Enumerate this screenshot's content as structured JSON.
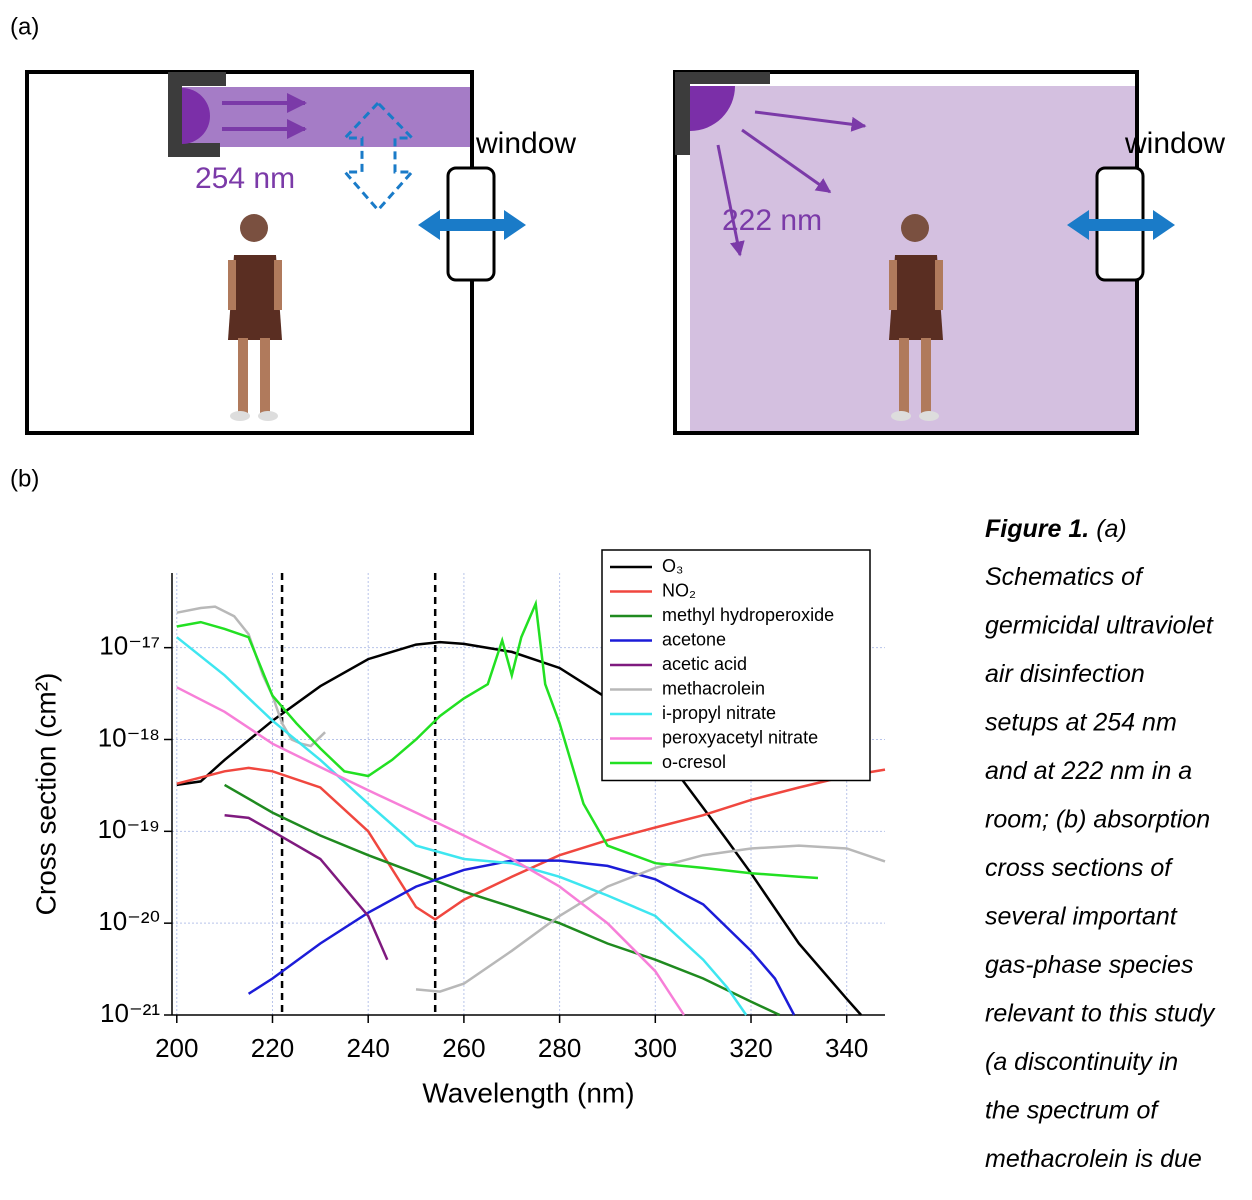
{
  "panel_a": {
    "label": "(a)",
    "left_wavelength": "254 nm",
    "left_window": "window",
    "right_wavelength": "222 nm",
    "right_window": "window"
  },
  "panel_b": {
    "label": "(b)"
  },
  "chart_data": {
    "type": "line",
    "x_label": "Wavelength (nm)",
    "y_label": "Cross section (cm²)",
    "log_y": true,
    "grid": true,
    "legend": "top-right",
    "xlim": [
      199,
      348
    ],
    "xticks": [
      200,
      220,
      240,
      260,
      280,
      300,
      320,
      340
    ],
    "ylim": [
      1e-21,
      6.5e-17
    ],
    "yticks": [
      {
        "value": 1e-21,
        "label": "10⁻²¹"
      },
      {
        "value": 1e-20,
        "label": "10⁻²⁰"
      },
      {
        "value": 1e-19,
        "label": "10⁻¹⁹"
      },
      {
        "value": 1e-18,
        "label": "10⁻¹⁸"
      },
      {
        "value": 1e-17,
        "label": "10⁻¹⁷"
      }
    ],
    "vlines": [
      222,
      254
    ],
    "series": [
      {
        "name": "O₃",
        "color": "#000000",
        "x": [
          200,
          205,
          210,
          220,
          230,
          240,
          250,
          255,
          260,
          270,
          280,
          290,
          300,
          310,
          315,
          320,
          330,
          340,
          343
        ],
        "values": [
          3.2e-19,
          3.5e-19,
          6e-19,
          1.6e-18,
          3.8e-18,
          7.5e-18,
          1.08e-17,
          1.15e-17,
          1.1e-17,
          9e-18,
          6e-18,
          2.8e-18,
          9e-19,
          1.8e-19,
          8e-20,
          3.5e-20,
          6e-21,
          1.5e-21,
          1e-21
        ]
      },
      {
        "name": "NO₂",
        "color": "#f0473f",
        "x": [
          200,
          210,
          215,
          220,
          230,
          240,
          250,
          254,
          260,
          270,
          280,
          290,
          300,
          310,
          320,
          330,
          340,
          348
        ],
        "values": [
          3.3e-19,
          4.5e-19,
          4.9e-19,
          4.5e-19,
          3e-19,
          1e-19,
          1.5e-20,
          1.1e-20,
          1.8e-20,
          3.2e-20,
          5.5e-20,
          8e-20,
          1.1e-19,
          1.5e-19,
          2.2e-19,
          3e-19,
          4e-19,
          4.7e-19
        ]
      },
      {
        "name": "methyl hydroperoxide",
        "color": "#1f8a1f",
        "x": [
          210,
          220,
          230,
          240,
          250,
          260,
          270,
          280,
          290,
          300,
          310,
          320,
          326
        ],
        "values": [
          3.2e-19,
          1.6e-19,
          9e-20,
          5.5e-20,
          3.5e-20,
          2.2e-20,
          1.5e-20,
          1e-20,
          6e-21,
          4e-21,
          2.5e-21,
          1.4e-21,
          1e-21
        ]
      },
      {
        "name": "acetone",
        "color": "#1c1cd8",
        "x": [
          215,
          220,
          230,
          240,
          250,
          260,
          270,
          280,
          290,
          300,
          310,
          320,
          325,
          329
        ],
        "values": [
          1.7e-21,
          2.5e-21,
          6e-21,
          1.3e-20,
          2.5e-20,
          3.8e-20,
          4.8e-20,
          4.8e-20,
          4.2e-20,
          3e-20,
          1.6e-20,
          5e-21,
          2.5e-21,
          1e-21
        ]
      },
      {
        "name": "acetic acid",
        "color": "#7f1a7f",
        "x": [
          210,
          215,
          220,
          230,
          240,
          244
        ],
        "values": [
          1.5e-19,
          1.4e-19,
          1e-19,
          5e-20,
          1.2e-20,
          4e-21
        ]
      },
      {
        "name": "methacrolein",
        "color": "#b8b8b8",
        "x": [
          200,
          205,
          208,
          212,
          215,
          218,
          220,
          222,
          224,
          226,
          228,
          231,
          240,
          250,
          255,
          260,
          270,
          280,
          290,
          300,
          310,
          320,
          330,
          340,
          348
        ],
        "values": [
          2.4e-17,
          2.7e-17,
          2.8e-17,
          2.2e-17,
          1.4e-17,
          5e-18,
          3e-18,
          1.5e-18,
          1e-18,
          9e-19,
          8.5e-19,
          1.2e-18,
          null,
          1.9e-21,
          1.8e-21,
          2.2e-21,
          5e-21,
          1.2e-20,
          2.5e-20,
          4e-20,
          5.5e-20,
          6.5e-20,
          7e-20,
          6.5e-20,
          4.7e-20
        ]
      },
      {
        "name": "i-propyl nitrate",
        "color": "#3ee6f0",
        "x": [
          200,
          210,
          220,
          230,
          240,
          250,
          260,
          270,
          280,
          290,
          300,
          310,
          315,
          319
        ],
        "values": [
          1.3e-17,
          5e-18,
          1.6e-18,
          6e-19,
          2e-19,
          7e-20,
          5e-20,
          4.5e-20,
          3.2e-20,
          2e-20,
          1.2e-20,
          4e-21,
          2e-21,
          1e-21
        ]
      },
      {
        "name": "peroxyacetyl nitrate",
        "color": "#f77fd8",
        "x": [
          200,
          210,
          220,
          230,
          240,
          250,
          260,
          270,
          280,
          290,
          300,
          306
        ],
        "values": [
          3.7e-18,
          2e-18,
          9e-19,
          5e-19,
          2.8e-19,
          1.6e-19,
          9e-20,
          5e-20,
          2.5e-20,
          1e-20,
          3e-21,
          1e-21
        ]
      },
      {
        "name": "o-cresol",
        "color": "#22e022",
        "x": [
          200,
          205,
          210,
          215,
          220,
          225,
          230,
          235,
          240,
          245,
          250,
          255,
          260,
          265,
          268,
          270,
          272,
          275,
          277,
          280,
          285,
          290,
          300,
          310,
          320,
          330,
          334
        ],
        "values": [
          1.7e-17,
          1.9e-17,
          1.6e-17,
          1.3e-17,
          3e-18,
          1.5e-18,
          8e-19,
          4.5e-19,
          4e-19,
          6e-19,
          1e-18,
          1.8e-18,
          2.8e-18,
          4e-18,
          1.2e-17,
          5e-18,
          1.3e-17,
          3e-17,
          4e-18,
          1.5e-18,
          2e-19,
          7e-20,
          4.5e-20,
          4e-20,
          3.5e-20,
          3.2e-20,
          3.1e-20
        ]
      }
    ]
  },
  "caption": {
    "label": "Figure 1.",
    "lines": [
      "(a)",
      "Schematics of",
      "germicidal ultraviolet",
      "air disinfection",
      "setups at 254 nm",
      "and at 222 nm in a",
      "room; (b) absorption",
      "cross sections of",
      "several important",
      "gas-phase species",
      "relevant to this study",
      "(a discontinuity in",
      "the spectrum of",
      "methacrolein is due"
    ]
  }
}
